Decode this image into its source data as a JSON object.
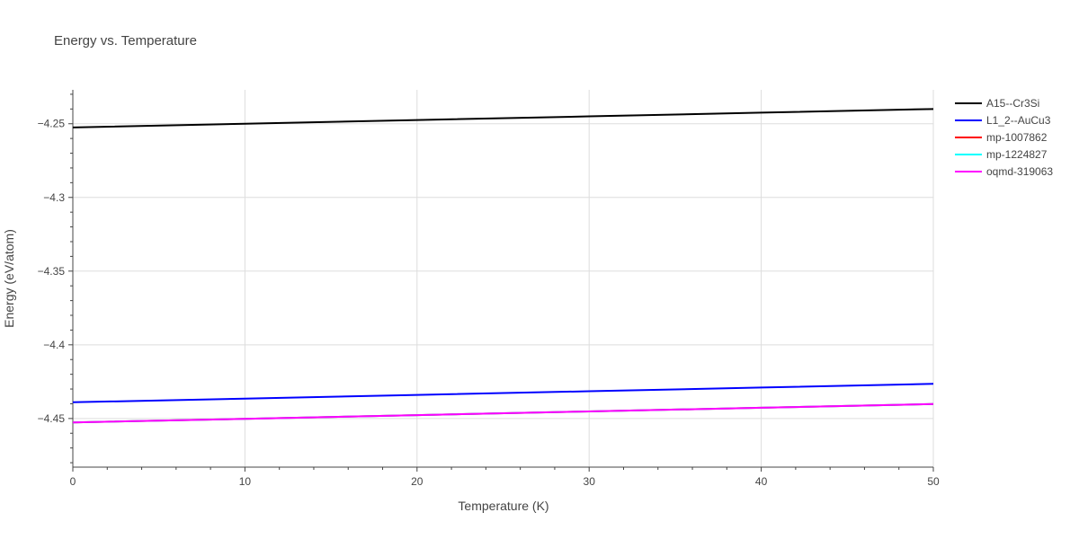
{
  "chart_data": {
    "type": "line",
    "title": "Energy vs. Temperature",
    "xlabel": "Temperature (K)",
    "ylabel": "Energy (eV/atom)",
    "xlim": [
      0,
      50
    ],
    "ylim": [
      -4.483,
      -4.227
    ],
    "x_ticks": [
      0,
      10,
      20,
      30,
      40,
      50
    ],
    "y_ticks": [
      -4.25,
      -4.3,
      -4.35,
      -4.4,
      -4.45
    ],
    "y_tick_labels": [
      "−4.25",
      "−4.3",
      "−4.35",
      "−4.4",
      "−4.45"
    ],
    "grid": true,
    "legend_position": "top-right",
    "x": [
      0,
      10,
      20,
      30,
      40,
      50
    ],
    "series": [
      {
        "name": "A15--Cr3Si",
        "color": "#000000",
        "values": [
          -4.2525,
          -4.25,
          -4.2475,
          -4.245,
          -4.2425,
          -4.24
        ]
      },
      {
        "name": "L1_2--AuCu3",
        "color": "#0000ff",
        "values": [
          -4.439,
          -4.4365,
          -4.434,
          -4.4315,
          -4.429,
          -4.4265
        ]
      },
      {
        "name": "mp-1007862",
        "color": "#ff0000",
        "values": [
          -4.4527,
          -4.4502,
          -4.4477,
          -4.4452,
          -4.4427,
          -4.4402
        ]
      },
      {
        "name": "mp-1224827",
        "color": "#00ffff",
        "values": [
          -4.4527,
          -4.4502,
          -4.4477,
          -4.4452,
          -4.4427,
          -4.4402
        ]
      },
      {
        "name": "oqmd-319063",
        "color": "#ff00ff",
        "values": [
          -4.4527,
          -4.4502,
          -4.4477,
          -4.4452,
          -4.4427,
          -4.4402
        ]
      }
    ]
  }
}
